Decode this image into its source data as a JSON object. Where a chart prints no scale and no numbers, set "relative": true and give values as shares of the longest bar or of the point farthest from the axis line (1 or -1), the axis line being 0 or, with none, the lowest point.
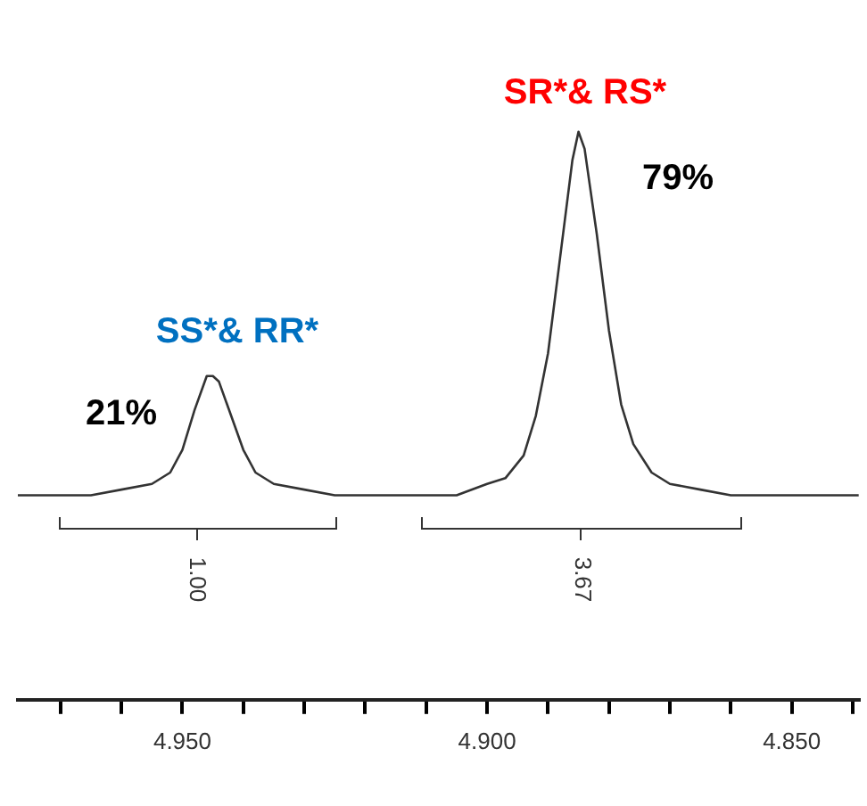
{
  "chart_data": {
    "type": "line",
    "relative": true,
    "marker": "none",
    "line_style": "solid",
    "grid": false,
    "legend": false,
    "tick_labels": "x",
    "x": [
      4.977,
      4.97,
      4.965,
      4.96,
      4.955,
      4.952,
      4.95,
      4.948,
      4.946,
      4.945,
      4.944,
      4.942,
      4.94,
      4.938,
      4.935,
      4.93,
      4.925,
      4.92,
      4.91,
      4.905,
      4.9,
      4.897,
      4.894,
      4.892,
      4.89,
      4.888,
      4.886,
      4.885,
      4.884,
      4.882,
      4.88,
      4.878,
      4.876,
      4.873,
      4.87,
      4.865,
      4.86,
      4.85,
      4.839
    ],
    "series": [
      {
        "color": "#333333",
        "values": [
          0.36,
          0.36,
          0.36,
          0.37,
          0.38,
          0.4,
          0.44,
          0.51,
          0.57,
          0.57,
          0.56,
          0.5,
          0.44,
          0.4,
          0.38,
          0.37,
          0.36,
          0.36,
          0.36,
          0.36,
          0.38,
          0.39,
          0.43,
          0.5,
          0.61,
          0.78,
          0.95,
          1,
          0.97,
          0.82,
          0.65,
          0.52,
          0.45,
          0.4,
          0.38,
          0.37,
          0.36,
          0.36,
          0.36
        ]
      }
    ],
    "xlim": [
      4.977,
      4.839
    ],
    "xticks": [
      {
        "value": 4.97,
        "label": null
      },
      {
        "value": 4.96,
        "label": null
      },
      {
        "value": 4.95,
        "label": "4.950"
      },
      {
        "value": 4.94,
        "label": null
      },
      {
        "value": 4.93,
        "label": null
      },
      {
        "value": 4.92,
        "label": null
      },
      {
        "value": 4.91,
        "label": null
      },
      {
        "value": 4.9,
        "label": "4.900"
      },
      {
        "value": 4.89,
        "label": null
      },
      {
        "value": 4.88,
        "label": null
      },
      {
        "value": 4.87,
        "label": null
      },
      {
        "value": 4.86,
        "label": null
      },
      {
        "value": 4.85,
        "label": "4.850"
      },
      {
        "value": 4.84,
        "label": null
      }
    ],
    "annotations": [
      "SS*& RR*",
      "21%",
      "SR*& RS*",
      "79%",
      "1.00",
      "3.67"
    ]
  }
}
